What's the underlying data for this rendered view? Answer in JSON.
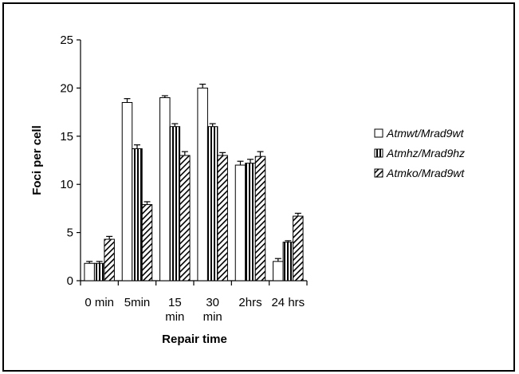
{
  "chart_data": {
    "type": "bar",
    "title": "",
    "xlabel": "Repair time",
    "ylabel": "Foci per cell",
    "ylim": [
      0,
      25
    ],
    "yticks": [
      0,
      5,
      10,
      15,
      20,
      25
    ],
    "grid": false,
    "legend_position": "right",
    "categories": [
      [
        "0 min"
      ],
      [
        "5min"
      ],
      [
        "15",
        "min"
      ],
      [
        "30",
        "min"
      ],
      [
        "2hrs"
      ],
      [
        "24 hrs"
      ]
    ],
    "series": [
      {
        "name": "Atmwt/Mrad9wt",
        "pattern": "white",
        "values": [
          1.8,
          18.5,
          19.0,
          20.0,
          12.0,
          2.0
        ],
        "errors": [
          0.2,
          0.4,
          0.2,
          0.4,
          0.4,
          0.3
        ]
      },
      {
        "name": "Atmhz/Mrad9hz",
        "pattern": "vertical",
        "values": [
          1.8,
          13.7,
          16.0,
          16.0,
          12.2,
          4.0
        ],
        "errors": [
          0.2,
          0.4,
          0.3,
          0.3,
          0.4,
          0.15
        ]
      },
      {
        "name": "Atmko/Mrad9wt",
        "pattern": "diagonal",
        "values": [
          4.3,
          7.9,
          13.0,
          13.0,
          12.9,
          6.7
        ],
        "errors": [
          0.3,
          0.3,
          0.4,
          0.3,
          0.5,
          0.3
        ]
      }
    ]
  }
}
